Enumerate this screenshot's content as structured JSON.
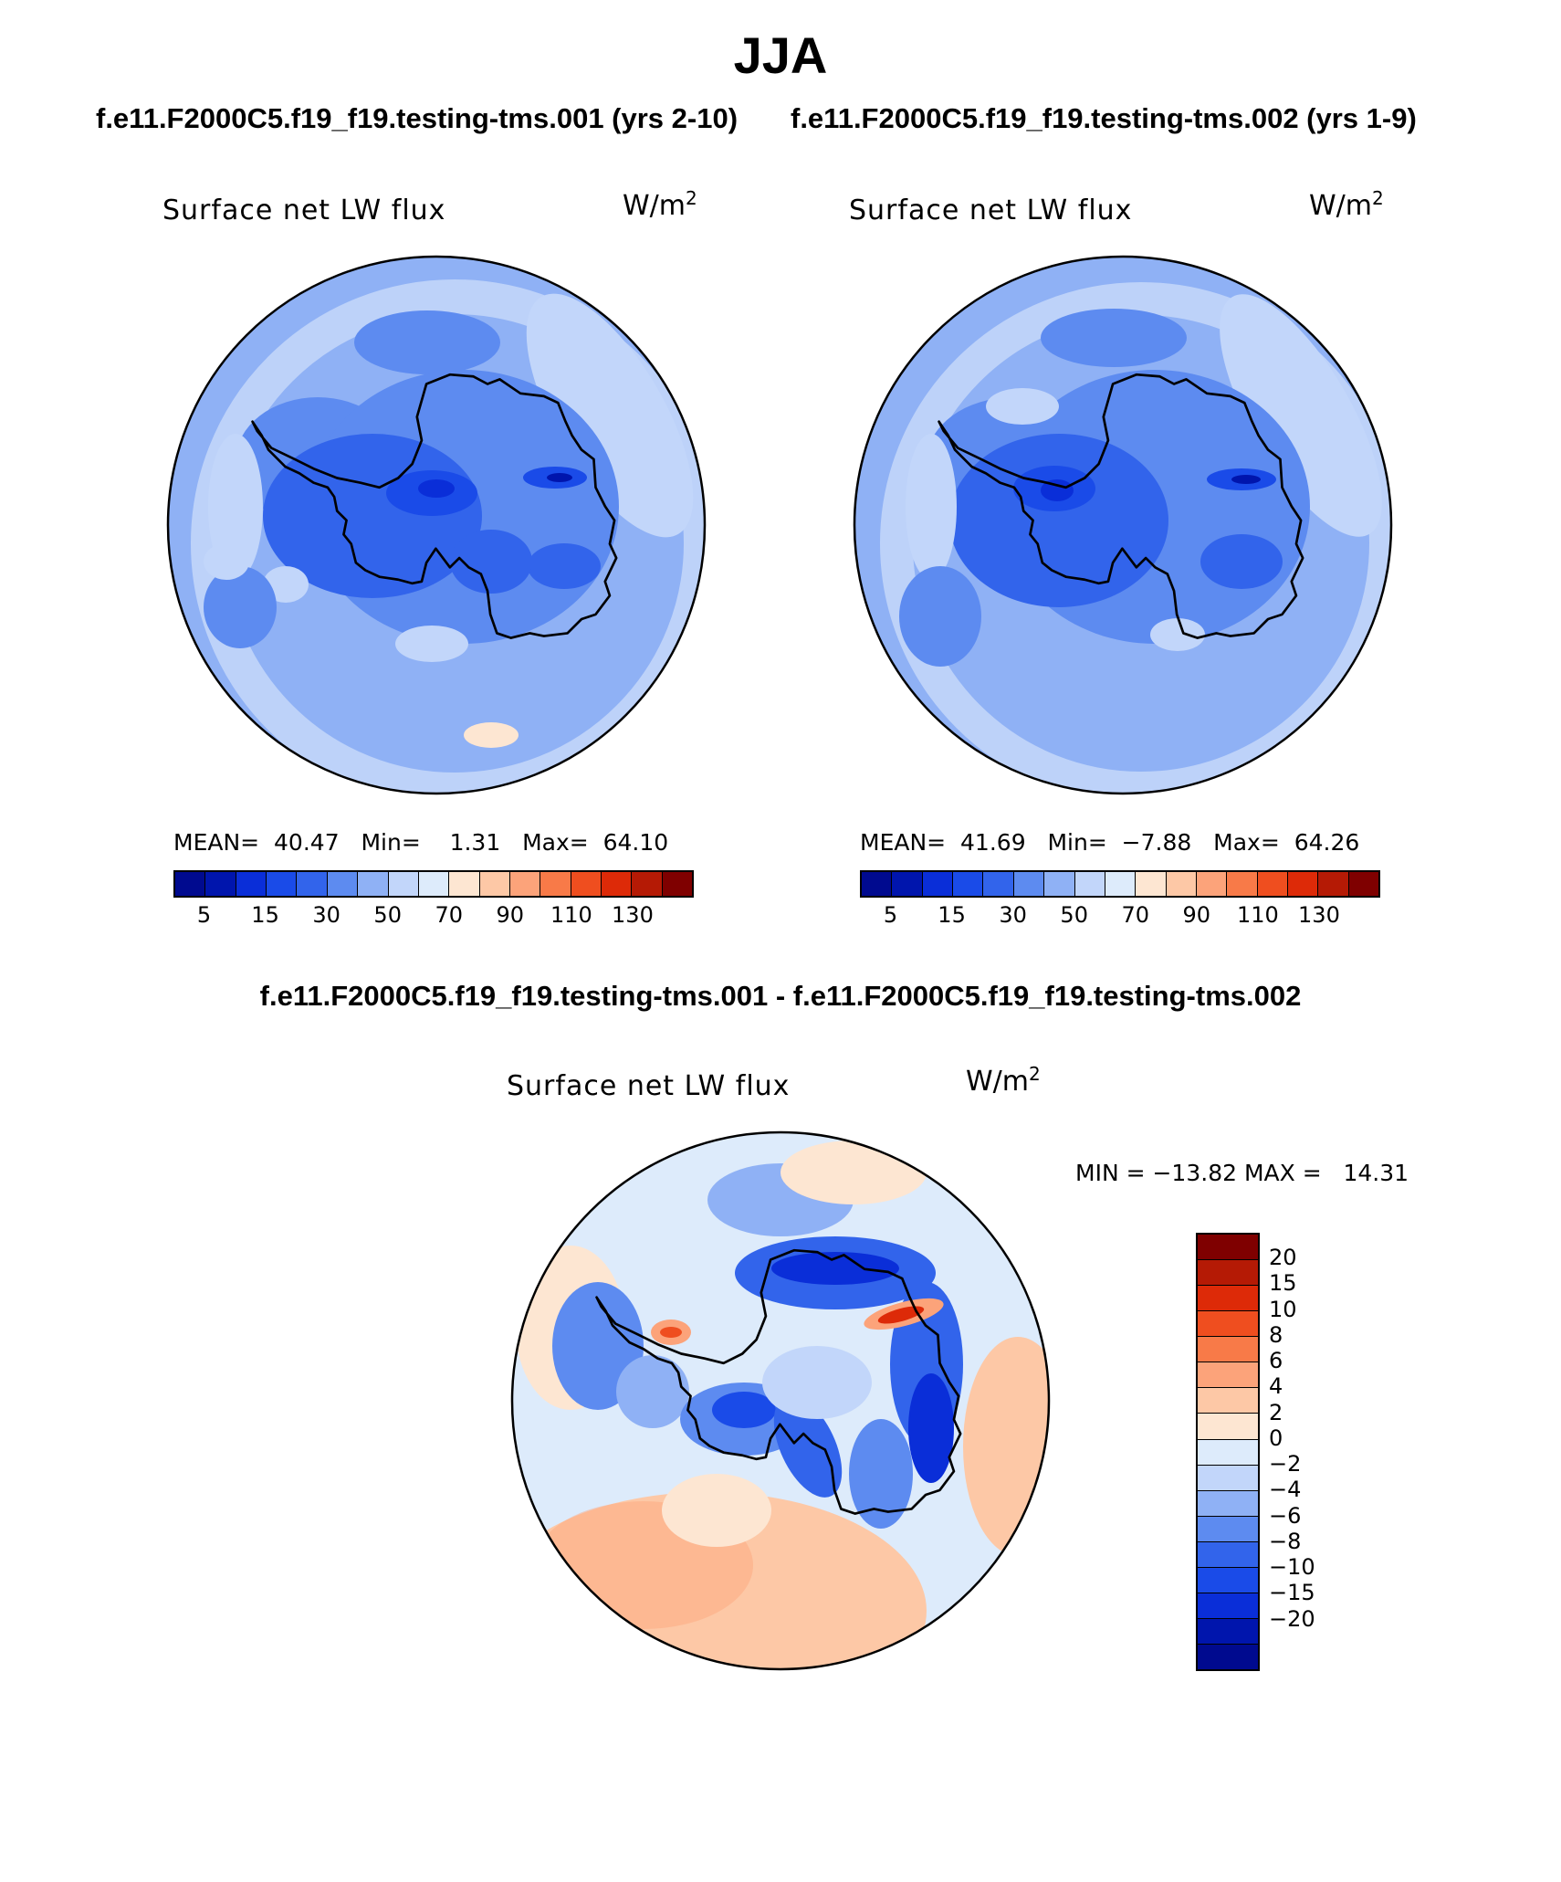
{
  "page_title": "JJA",
  "panels": [
    {
      "case_title": "f.e11.F2000C5.f19_f19.testing-tms.001 (yrs 2-10)",
      "variable": "Surface net LW flux",
      "units_base": "W/m",
      "units_exp": "2",
      "stats": {
        "mean_label": "MEAN=",
        "mean": "40.47",
        "min_label": "Min=",
        "min": "1.31",
        "max_label": "Max=",
        "max": "64.10"
      }
    },
    {
      "case_title": "f.e11.F2000C5.f19_f19.testing-tms.002 (yrs 1-9)",
      "variable": "Surface net LW flux",
      "units_base": "W/m",
      "units_exp": "2",
      "stats": {
        "mean_label": "MEAN=",
        "mean": "41.69",
        "min_label": "Min=",
        "min": "−7.88",
        "max_label": "Max=",
        "max": "64.26"
      }
    }
  ],
  "difference": {
    "title": "f.e11.F2000C5.f19_f19.testing-tms.001 - f.e11.F2000C5.f19_f19.testing-tms.002",
    "variable": "Surface net LW flux",
    "units_base": "W/m",
    "units_exp": "2",
    "minmax_text": "MIN = −13.82 MAX =   14.31"
  },
  "colorbar_main": {
    "colors": [
      "#000a8f",
      "#0015ad",
      "#0a2ed8",
      "#1a4be8",
      "#3264eb",
      "#5d8bf0",
      "#8fb1f5",
      "#c2d6fa",
      "#ddebfb",
      "#fde6d2",
      "#fdc8a6",
      "#fca37a",
      "#f87a48",
      "#ef4e1f",
      "#dd2a08",
      "#b51a05",
      "#7f0000"
    ],
    "tick_labels": [
      "5",
      "15",
      "30",
      "50",
      "70",
      "90",
      "110",
      "130"
    ]
  },
  "colorbar_diff": {
    "colors": [
      "#7f0000",
      "#b51a05",
      "#dd2a08",
      "#ef4e1f",
      "#f87a48",
      "#fca37a",
      "#fdc8a6",
      "#fde6d2",
      "#ddebfb",
      "#c2d6fa",
      "#8fb1f5",
      "#5d8bf0",
      "#3264eb",
      "#1a4be8",
      "#0a2ed8",
      "#0015ad",
      "#000a8f"
    ],
    "tick_labels": [
      "20",
      "15",
      "10",
      "8",
      "6",
      "4",
      "2",
      "0",
      "−2",
      "−4",
      "−6",
      "−8",
      "−10",
      "−15",
      "−20"
    ]
  },
  "chart_data": [
    {
      "type": "heatmap",
      "title": "Surface net LW flux",
      "subtitle": "f.e11.F2000C5.f19_f19.testing-tms.001 (yrs 2-10)",
      "projection": "south-polar stereographic",
      "units": "W/m2",
      "mean": 40.47,
      "min": 1.31,
      "max": 64.1,
      "levels": [
        5,
        10,
        15,
        20,
        30,
        40,
        50,
        60,
        70,
        80,
        90,
        100,
        110,
        120,
        130,
        140
      ]
    },
    {
      "type": "heatmap",
      "title": "Surface net LW flux",
      "subtitle": "f.e11.F2000C5.f19_f19.testing-tms.002 (yrs 1-9)",
      "projection": "south-polar stereographic",
      "units": "W/m2",
      "mean": 41.69,
      "min": -7.88,
      "max": 64.26,
      "levels": [
        5,
        10,
        15,
        20,
        30,
        40,
        50,
        60,
        70,
        80,
        90,
        100,
        110,
        120,
        130,
        140
      ]
    },
    {
      "type": "heatmap",
      "title": "Surface net LW flux",
      "subtitle": "f.e11.F2000C5.f19_f19.testing-tms.001 - f.e11.F2000C5.f19_f19.testing-tms.002",
      "projection": "south-polar stereographic",
      "units": "W/m2",
      "min": -13.82,
      "max": 14.31,
      "levels": [
        -20,
        -15,
        -10,
        -8,
        -6,
        -4,
        -2,
        0,
        2,
        4,
        6,
        8,
        10,
        15,
        20
      ]
    }
  ]
}
